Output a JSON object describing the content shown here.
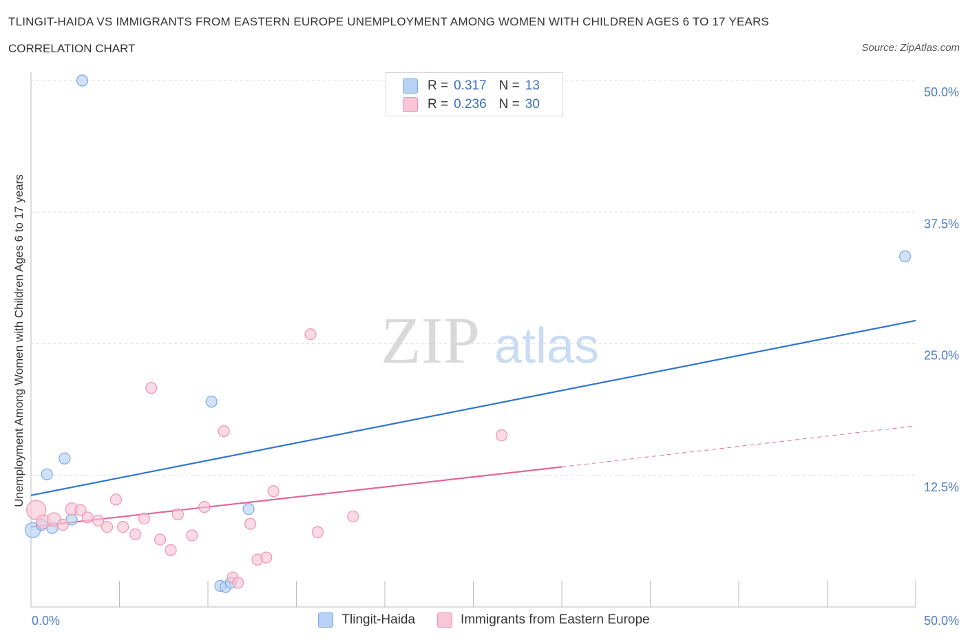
{
  "header": {
    "title": "TLINGIT-HAIDA VS IMMIGRANTS FROM EASTERN EUROPE UNEMPLOYMENT AMONG WOMEN WITH CHILDREN AGES 6 TO 17 YEARS",
    "subtitle": "CORRELATION CHART",
    "source": "Source: ZipAtlas.com"
  },
  "watermark": {
    "zip": "ZIP",
    "atlas": "atlas"
  },
  "legend": {
    "rows": [
      {
        "r_label": "R =",
        "r_value": "0.317",
        "n_label": "N =",
        "n_value": "13",
        "color": "#b8d2f5",
        "border": "#7aa7e6"
      },
      {
        "r_label": "R =",
        "r_value": "0.236",
        "n_label": "N =",
        "n_value": "30",
        "color": "#f8c6d6",
        "border": "#ec94b2"
      }
    ]
  },
  "chart_data": {
    "type": "scatter",
    "title": "TLINGIT-HAIDA VS IMMIGRANTS FROM EASTERN EUROPE UNEMPLOYMENT AMONG WOMEN WITH CHILDREN AGES 6 TO 17 YEARS",
    "ylabel": "Unemployment Among Women with Children Ages 6 to 17 years",
    "xlabel": "",
    "xlim": [
      0,
      50
    ],
    "ylim": [
      0,
      50
    ],
    "x_tick_labels": [
      "0.0%",
      "50.0%"
    ],
    "y_ticks": [
      12.5,
      25.0,
      37.5,
      50.0
    ],
    "y_tick_labels": [
      "12.5%",
      "25.0%",
      "37.5%",
      "50.0%"
    ],
    "grid": true,
    "legend_position": "bottom",
    "series": [
      {
        "name": "Tlingit-Haida",
        "color": "#7aa7e6",
        "fill": "#b8d2f5",
        "line_color": "#2f74d0",
        "trend": {
          "x0": 0,
          "y0": 10.6,
          "x1": 50,
          "y1": 27.2
        },
        "points": [
          {
            "x": 0.1,
            "y": 7.3,
            "s": 11
          },
          {
            "x": 0.6,
            "y": 7.8,
            "s": 8
          },
          {
            "x": 0.9,
            "y": 12.6,
            "s": 8
          },
          {
            "x": 1.2,
            "y": 7.5,
            "s": 8
          },
          {
            "x": 1.9,
            "y": 14.1,
            "s": 8
          },
          {
            "x": 2.3,
            "y": 8.3,
            "s": 8
          },
          {
            "x": 2.9,
            "y": 50.0,
            "s": 8
          },
          {
            "x": 10.2,
            "y": 19.5,
            "s": 8
          },
          {
            "x": 10.7,
            "y": 2.0,
            "s": 8
          },
          {
            "x": 11.0,
            "y": 1.9,
            "s": 8
          },
          {
            "x": 11.3,
            "y": 2.3,
            "s": 8
          },
          {
            "x": 12.3,
            "y": 9.3,
            "s": 8
          },
          {
            "x": 49.4,
            "y": 33.3,
            "s": 8
          }
        ]
      },
      {
        "name": "Immigrants from Eastern Europe",
        "color": "#ec94b2",
        "fill": "#f8c6d6",
        "line_color": "#e2669a",
        "trend": {
          "x0": 0,
          "y0": 7.6,
          "x1": 30,
          "y1": 13.3
        },
        "trend_dashed": {
          "x0": 30,
          "y0": 13.3,
          "x1": 50,
          "y1": 17.2
        },
        "points": [
          {
            "x": 0.3,
            "y": 9.2,
            "s": 14
          },
          {
            "x": 0.7,
            "y": 8.1,
            "s": 10
          },
          {
            "x": 1.3,
            "y": 8.3,
            "s": 10
          },
          {
            "x": 1.8,
            "y": 7.8,
            "s": 8
          },
          {
            "x": 2.3,
            "y": 9.3,
            "s": 9
          },
          {
            "x": 2.8,
            "y": 9.2,
            "s": 8
          },
          {
            "x": 3.2,
            "y": 8.5,
            "s": 8
          },
          {
            "x": 3.8,
            "y": 8.2,
            "s": 8
          },
          {
            "x": 4.3,
            "y": 7.6,
            "s": 8
          },
          {
            "x": 4.8,
            "y": 10.2,
            "s": 8
          },
          {
            "x": 5.2,
            "y": 7.6,
            "s": 8
          },
          {
            "x": 5.9,
            "y": 6.9,
            "s": 8
          },
          {
            "x": 6.4,
            "y": 8.4,
            "s": 8
          },
          {
            "x": 6.8,
            "y": 20.8,
            "s": 8
          },
          {
            "x": 7.3,
            "y": 6.4,
            "s": 8
          },
          {
            "x": 7.9,
            "y": 5.4,
            "s": 8
          },
          {
            "x": 8.3,
            "y": 8.8,
            "s": 8
          },
          {
            "x": 9.1,
            "y": 6.8,
            "s": 8
          },
          {
            "x": 9.8,
            "y": 9.5,
            "s": 8
          },
          {
            "x": 10.9,
            "y": 16.7,
            "s": 8
          },
          {
            "x": 11.4,
            "y": 2.8,
            "s": 8
          },
          {
            "x": 11.7,
            "y": 2.3,
            "s": 8
          },
          {
            "x": 12.4,
            "y": 7.9,
            "s": 8
          },
          {
            "x": 12.8,
            "y": 4.5,
            "s": 8
          },
          {
            "x": 13.3,
            "y": 4.7,
            "s": 8
          },
          {
            "x": 13.7,
            "y": 11.0,
            "s": 8
          },
          {
            "x": 15.8,
            "y": 25.9,
            "s": 8
          },
          {
            "x": 16.2,
            "y": 7.1,
            "s": 8
          },
          {
            "x": 18.2,
            "y": 8.6,
            "s": 8
          },
          {
            "x": 26.6,
            "y": 16.3,
            "s": 8
          }
        ]
      }
    ]
  }
}
